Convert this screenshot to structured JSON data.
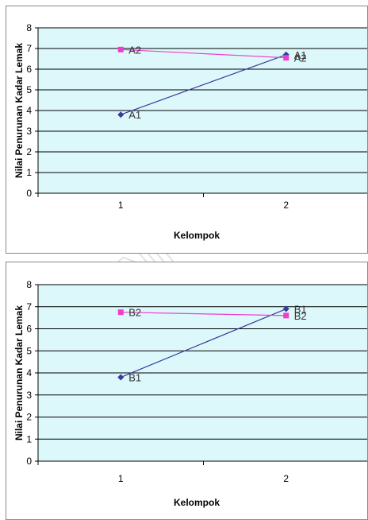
{
  "watermark": {
    "text": "UNIVERSITAS"
  },
  "colors": {
    "plot_bg": "#ddf8fb",
    "grid": "#000000",
    "series_a": "#3a3a9c",
    "series_b": "#ee3ecb",
    "watermark": "#d8d8d8"
  },
  "chart_data": [
    {
      "type": "line",
      "categories": [
        "1",
        "2"
      ],
      "ylabel": "Nilai Penurunan Kadar Lemak",
      "xlabel": "Kelompok",
      "ylim": [
        0,
        8
      ],
      "yticks": [
        "0",
        "1",
        "2",
        "3",
        "4",
        "5",
        "6",
        "7",
        "8"
      ],
      "grid": true,
      "series": [
        {
          "name": "A1",
          "values": [
            3.8,
            6.7
          ],
          "labels": [
            "A1",
            "A1"
          ],
          "color": "#3a3a9c",
          "marker": "diamond"
        },
        {
          "name": "A2",
          "values": [
            6.95,
            6.55
          ],
          "labels": [
            "A2",
            "A2"
          ],
          "color": "#ee3ecb",
          "marker": "square"
        }
      ]
    },
    {
      "type": "line",
      "categories": [
        "1",
        "2"
      ],
      "ylabel": "Nilai Penurunan Kadar Lemak",
      "xlabel": "Kelompok",
      "ylim": [
        0,
        8
      ],
      "yticks": [
        "0",
        "1",
        "2",
        "3",
        "4",
        "5",
        "6",
        "7",
        "8"
      ],
      "grid": true,
      "series": [
        {
          "name": "B1",
          "values": [
            3.8,
            6.9
          ],
          "labels": [
            "B1",
            "B1"
          ],
          "color": "#3a3a9c",
          "marker": "diamond"
        },
        {
          "name": "B2",
          "values": [
            6.75,
            6.6
          ],
          "labels": [
            "B2",
            "B2"
          ],
          "color": "#ee3ecb",
          "marker": "square"
        }
      ]
    }
  ]
}
